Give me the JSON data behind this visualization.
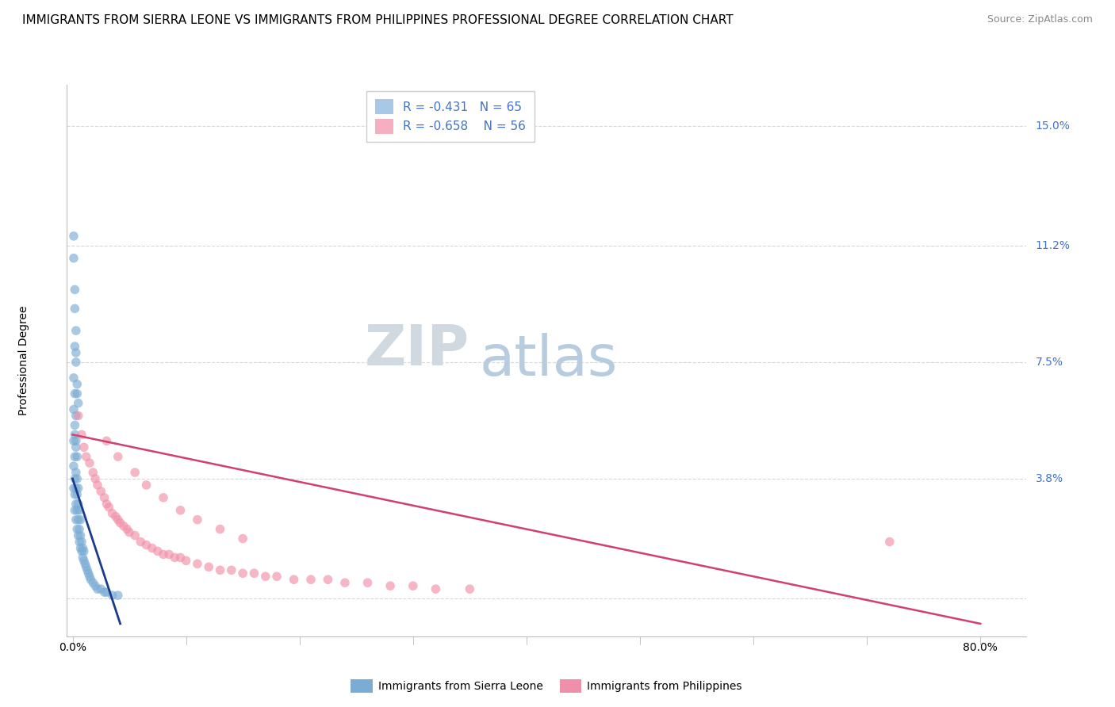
{
  "title": "IMMIGRANTS FROM SIERRA LEONE VS IMMIGRANTS FROM PHILIPPINES PROFESSIONAL DEGREE CORRELATION CHART",
  "source": "Source: ZipAtlas.com",
  "xlabel_bottom_left": "0.0%",
  "xlabel_bottom_right": "80.0%",
  "ylabel": "Professional Degree",
  "yticks": [
    0.0,
    0.038,
    0.075,
    0.112,
    0.15
  ],
  "ytick_labels": [
    "",
    "3.8%",
    "7.5%",
    "11.2%",
    "15.0%"
  ],
  "xlim": [
    -0.005,
    0.84
  ],
  "ylim": [
    -0.012,
    0.163
  ],
  "legend_entries": [
    {
      "color": "#a8c8e8",
      "R": "-0.431",
      "N": "65"
    },
    {
      "color": "#f4b0c0",
      "R": "-0.658",
      "N": "56"
    }
  ],
  "legend_color": "#4472c4",
  "blue_line_color": "#1a3a8a",
  "pink_line_color": "#d04070",
  "scatter_blue_color": "#7badd4",
  "scatter_pink_color": "#f090a8",
  "scatter_alpha": 0.65,
  "scatter_size": 70,
  "watermark_ZIP": "ZIP",
  "watermark_atlas": "atlas",
  "watermark_ZIP_color": "#d0d8e0",
  "watermark_atlas_color": "#b8cce0",
  "title_fontsize": 11,
  "source_fontsize": 9,
  "axis_label_fontsize": 10,
  "legend_fontsize": 11,
  "bottom_legend_blue": "Immigrants from Sierra Leone",
  "bottom_legend_pink": "Immigrants from Philippines",
  "blue_scatter_x": [
    0.001,
    0.001,
    0.001,
    0.002,
    0.002,
    0.002,
    0.002,
    0.002,
    0.003,
    0.003,
    0.003,
    0.003,
    0.003,
    0.004,
    0.004,
    0.004,
    0.004,
    0.005,
    0.005,
    0.005,
    0.005,
    0.006,
    0.006,
    0.006,
    0.007,
    0.007,
    0.007,
    0.008,
    0.008,
    0.009,
    0.009,
    0.01,
    0.01,
    0.011,
    0.012,
    0.013,
    0.014,
    0.015,
    0.016,
    0.018,
    0.02,
    0.022,
    0.025,
    0.028,
    0.03,
    0.035,
    0.04,
    0.001,
    0.001,
    0.002,
    0.002,
    0.003,
    0.003,
    0.004,
    0.002,
    0.003,
    0.004,
    0.005,
    0.001,
    0.002,
    0.003,
    0.001,
    0.002,
    0.003,
    0.004
  ],
  "blue_scatter_y": [
    0.035,
    0.042,
    0.05,
    0.028,
    0.033,
    0.038,
    0.045,
    0.052,
    0.025,
    0.03,
    0.035,
    0.04,
    0.048,
    0.022,
    0.028,
    0.033,
    0.038,
    0.02,
    0.025,
    0.03,
    0.035,
    0.018,
    0.022,
    0.028,
    0.016,
    0.02,
    0.025,
    0.015,
    0.018,
    0.013,
    0.016,
    0.012,
    0.015,
    0.011,
    0.01,
    0.009,
    0.008,
    0.007,
    0.006,
    0.005,
    0.004,
    0.003,
    0.003,
    0.002,
    0.002,
    0.001,
    0.001,
    0.06,
    0.07,
    0.055,
    0.065,
    0.05,
    0.058,
    0.045,
    0.08,
    0.075,
    0.068,
    0.062,
    0.115,
    0.098,
    0.085,
    0.108,
    0.092,
    0.078,
    0.065
  ],
  "pink_scatter_x": [
    0.005,
    0.008,
    0.01,
    0.012,
    0.015,
    0.018,
    0.02,
    0.022,
    0.025,
    0.028,
    0.03,
    0.032,
    0.035,
    0.038,
    0.04,
    0.042,
    0.045,
    0.048,
    0.05,
    0.055,
    0.06,
    0.065,
    0.07,
    0.075,
    0.08,
    0.085,
    0.09,
    0.095,
    0.1,
    0.11,
    0.12,
    0.13,
    0.14,
    0.15,
    0.16,
    0.17,
    0.18,
    0.195,
    0.21,
    0.225,
    0.24,
    0.26,
    0.28,
    0.3,
    0.32,
    0.35,
    0.03,
    0.04,
    0.055,
    0.065,
    0.08,
    0.095,
    0.11,
    0.13,
    0.15,
    0.72
  ],
  "pink_scatter_y": [
    0.058,
    0.052,
    0.048,
    0.045,
    0.043,
    0.04,
    0.038,
    0.036,
    0.034,
    0.032,
    0.03,
    0.029,
    0.027,
    0.026,
    0.025,
    0.024,
    0.023,
    0.022,
    0.021,
    0.02,
    0.018,
    0.017,
    0.016,
    0.015,
    0.014,
    0.014,
    0.013,
    0.013,
    0.012,
    0.011,
    0.01,
    0.009,
    0.009,
    0.008,
    0.008,
    0.007,
    0.007,
    0.006,
    0.006,
    0.006,
    0.005,
    0.005,
    0.004,
    0.004,
    0.003,
    0.003,
    0.05,
    0.045,
    0.04,
    0.036,
    0.032,
    0.028,
    0.025,
    0.022,
    0.019,
    0.018
  ],
  "blue_trend_x": [
    0.0,
    0.042
  ],
  "blue_trend_y": [
    0.038,
    -0.008
  ],
  "pink_trend_x": [
    0.0,
    0.8
  ],
  "pink_trend_y": [
    0.052,
    -0.008
  ],
  "grid_color": "#d8d8d8",
  "grid_style": "--",
  "background_color": "#ffffff"
}
